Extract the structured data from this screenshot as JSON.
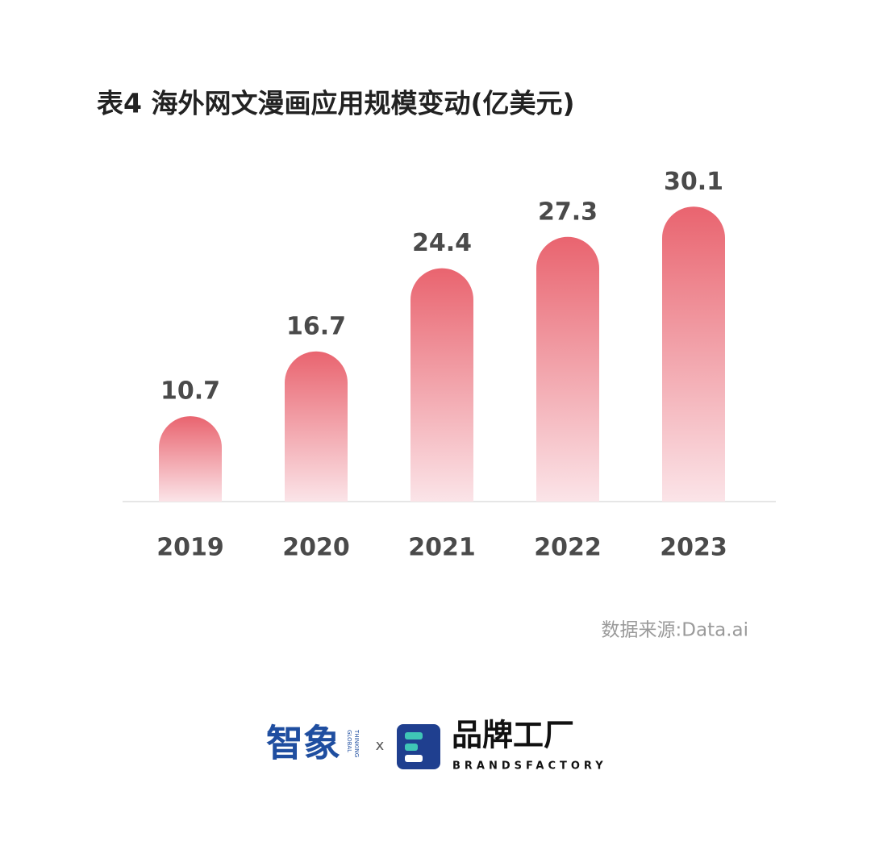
{
  "chart_data": {
    "type": "bar",
    "title": "表4  海外网文漫画应用规模变动(亿美元)",
    "categories": [
      "2019",
      "2020",
      "2021",
      "2022",
      "2023"
    ],
    "values": [
      10.7,
      16.7,
      24.4,
      27.3,
      30.1
    ],
    "color_top": "#e9646f",
    "color_bottom": "#fbe4e8",
    "ylim": [
      2.8,
      34.3
    ],
    "grid": false,
    "source": "数据来源:Data.ai"
  },
  "footer": {
    "brand1": "智象",
    "brand1_sub1": "GLOBAL",
    "brand1_sub2": "THINKING",
    "separator": "x",
    "brand2": "品牌工厂",
    "brand2_sub": "BRANDSFACTORY"
  }
}
